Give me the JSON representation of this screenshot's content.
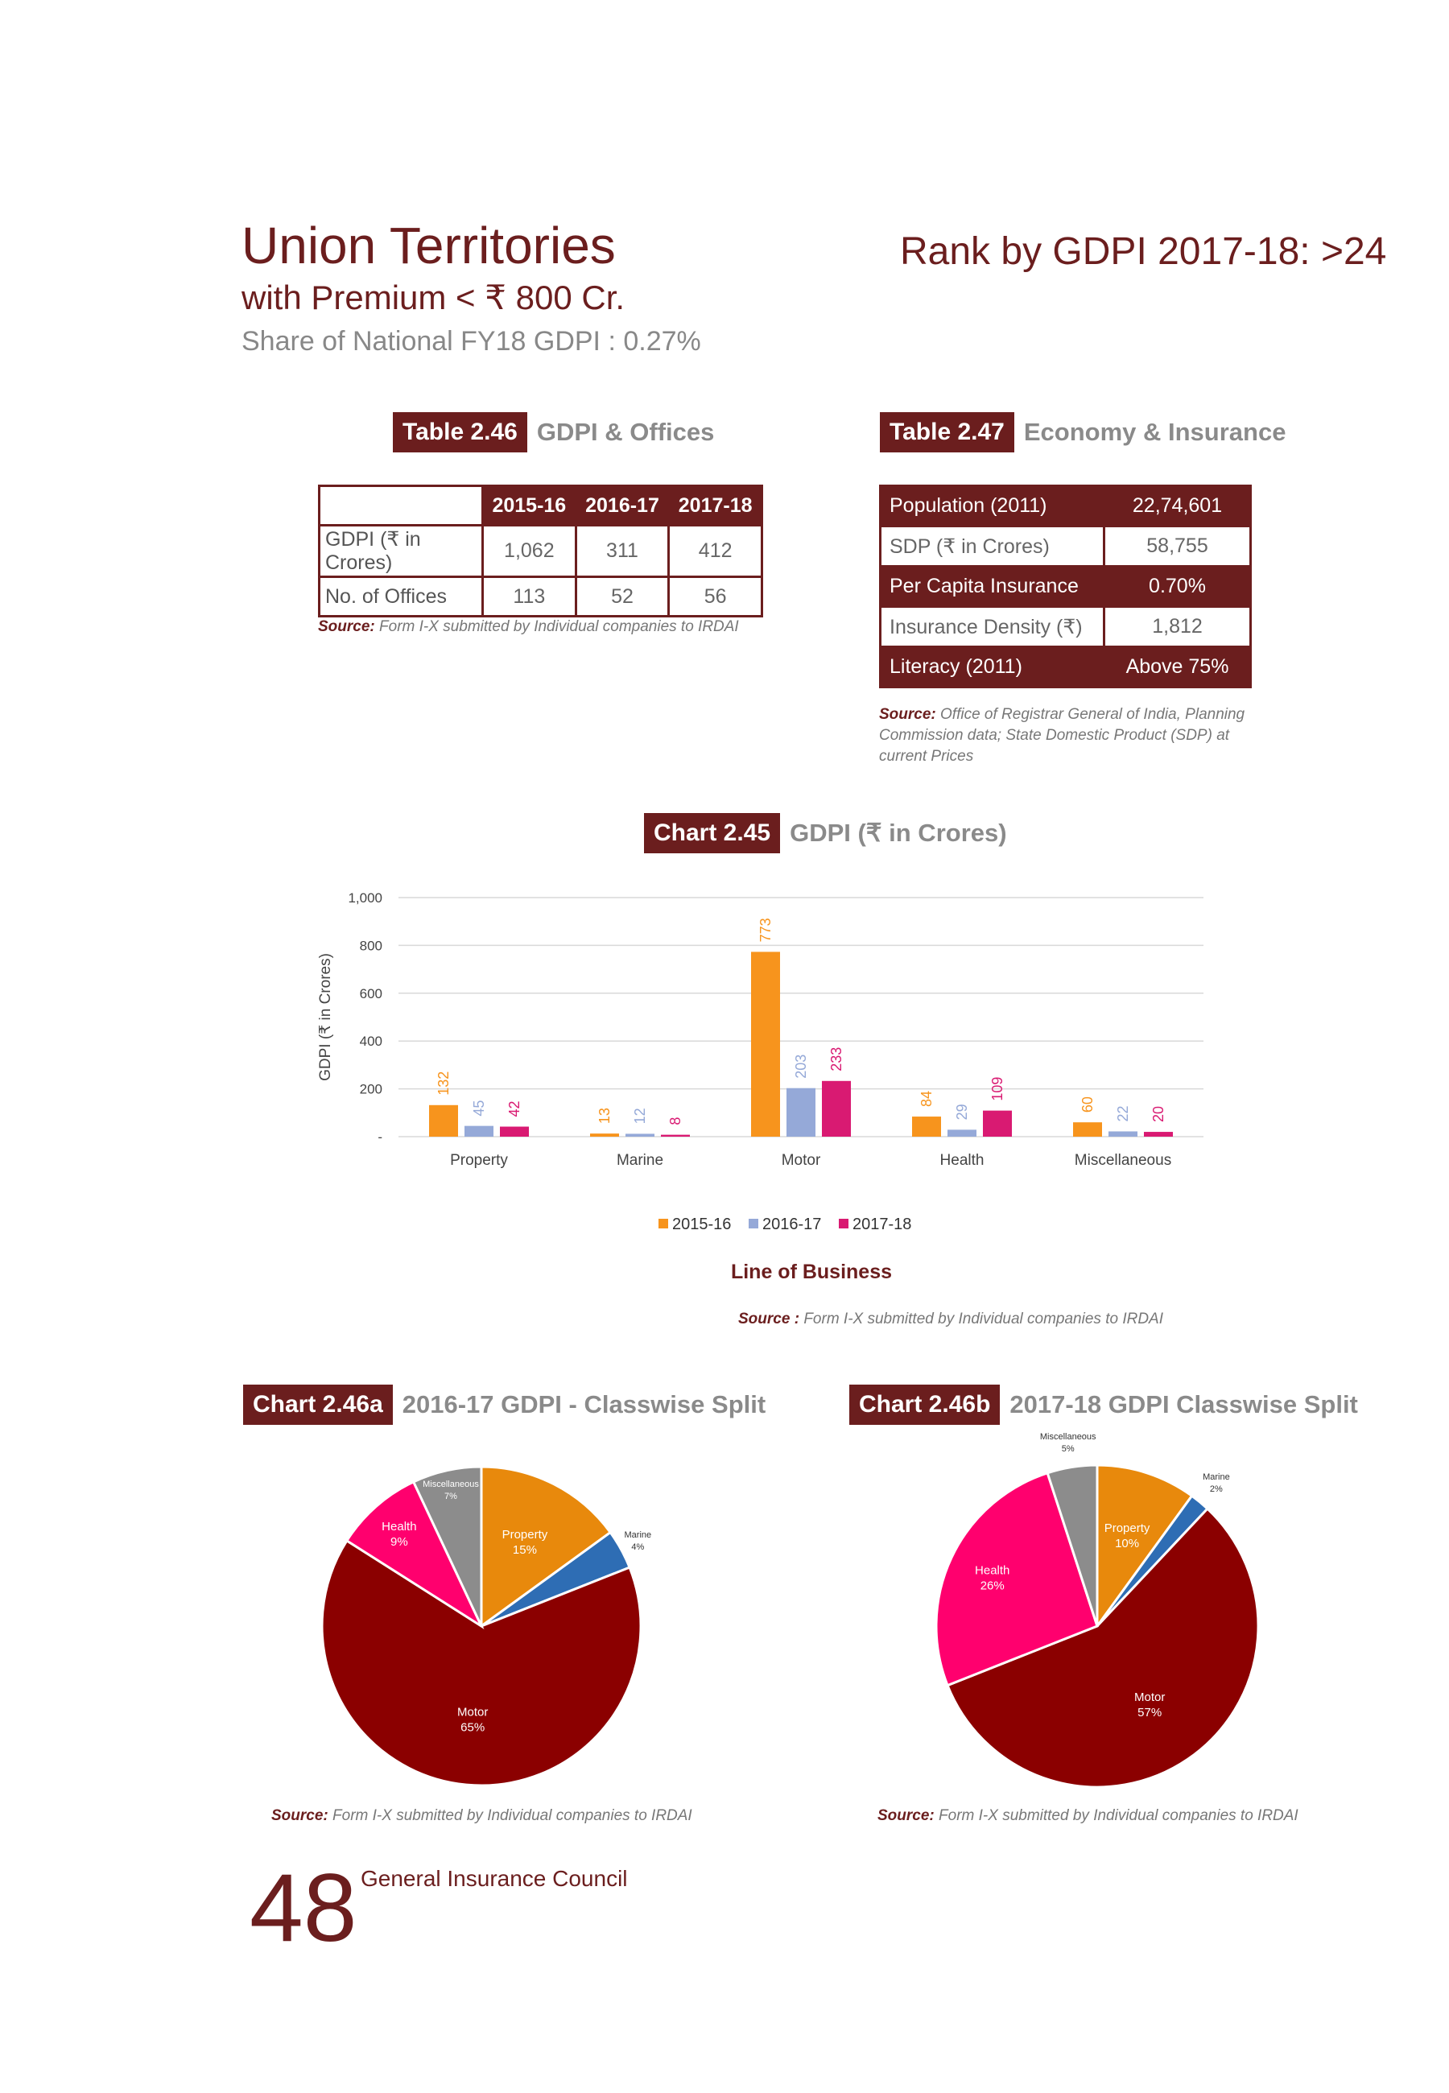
{
  "header": {
    "title": "Union Territories",
    "subtitle": "with Premium < ₹ 800 Cr.",
    "share": "Share of National FY18 GDPI : 0.27%",
    "rank": "Rank by GDPI 2017-18: >24"
  },
  "table46": {
    "label": "Table 2.46",
    "title": "GDPI & Offices",
    "columns": [
      "2015-16",
      "2016-17",
      "2017-18"
    ],
    "rows": [
      {
        "label": "GDPI (₹ in Crores)",
        "values": [
          "1,062",
          "311",
          "412"
        ]
      },
      {
        "label": "No. of Offices",
        "values": [
          "113",
          "52",
          "56"
        ]
      }
    ],
    "source_label": "Source:",
    "source_text": "Form I-X submitted by Individual companies to IRDAI"
  },
  "table47": {
    "label": "Table 2.47",
    "title": "Economy & Insurance",
    "rows": [
      {
        "label": "Population (2011)",
        "value": "22,74,601"
      },
      {
        "label": "SDP (₹ in Crores)",
        "value": "58,755"
      },
      {
        "label": "Per Capita Insurance",
        "value": "0.70%"
      },
      {
        "label": "Insurance Density (₹)",
        "value": "1,812"
      },
      {
        "label": "Literacy (2011)",
        "value": "Above 75%"
      }
    ],
    "source_label": "Source:",
    "source_text": "Office of Registrar General of India, Planning Commission data; State Domestic Product (SDP) at current Prices"
  },
  "chart45": {
    "label": "Chart 2.45",
    "title": "GDPI (₹ in Crores)",
    "source_label": "Source :",
    "source_text": "Form I-X submitted by Individual companies to IRDAI"
  },
  "chart46a": {
    "label": "Chart 2.46a",
    "title": "2016-17 GDPI - Classwise Split",
    "source_label": "Source:",
    "source_text": "Form I-X submitted by Individual companies to IRDAI"
  },
  "chart46b": {
    "label": "Chart 2.46b",
    "title": "2017-18 GDPI Classwise Split",
    "source_label": "Source:",
    "source_text": "Form I-X submitted by Individual companies to IRDAI"
  },
  "footer": {
    "page_number": "48",
    "publisher": "General Insurance Council"
  },
  "colors": {
    "maroon": "#6b1e1e",
    "series_2015": "#f7941d",
    "series_2016": "#95a9d8",
    "series_2017": "#d91a72",
    "pie_property": "#e8890c",
    "pie_marine": "#2e6db4",
    "pie_motor": "#8b0000",
    "pie_health": "#ff006e",
    "pie_misc": "#8c8c8c"
  },
  "chart_data": [
    {
      "type": "bar",
      "categories": [
        "Property",
        "Marine",
        "Motor",
        "Health",
        "Miscellaneous"
      ],
      "series": [
        {
          "name": "2015-16",
          "values": [
            132,
            13,
            773,
            84,
            60
          ]
        },
        {
          "name": "2016-17",
          "values": [
            45,
            12,
            203,
            29,
            22
          ]
        },
        {
          "name": "2017-18",
          "values": [
            42,
            8,
            233,
            109,
            20
          ]
        }
      ],
      "yticks": [
        "-",
        "200",
        "400",
        "600",
        "800",
        "1,000"
      ],
      "ylim": [
        0,
        1000
      ],
      "xlabel": "Line of Business",
      "ylabel": "GDPI (₹ in Crores)",
      "legend": "bottom",
      "grid": true
    },
    {
      "type": "pie",
      "labels": [
        "Property",
        "Marine",
        "Motor",
        "Health",
        "Miscellaneous"
      ],
      "values": [
        15,
        4,
        65,
        9,
        7
      ],
      "display": [
        "15%",
        "4%",
        "65%",
        "9%",
        "7%"
      ]
    },
    {
      "type": "pie",
      "labels": [
        "Property",
        "Marine",
        "Motor",
        "Health",
        "Miscellaneous"
      ],
      "values": [
        10,
        2,
        57,
        26,
        5
      ],
      "display": [
        "10%",
        "2%",
        "57%",
        "26%",
        "5%"
      ]
    }
  ]
}
